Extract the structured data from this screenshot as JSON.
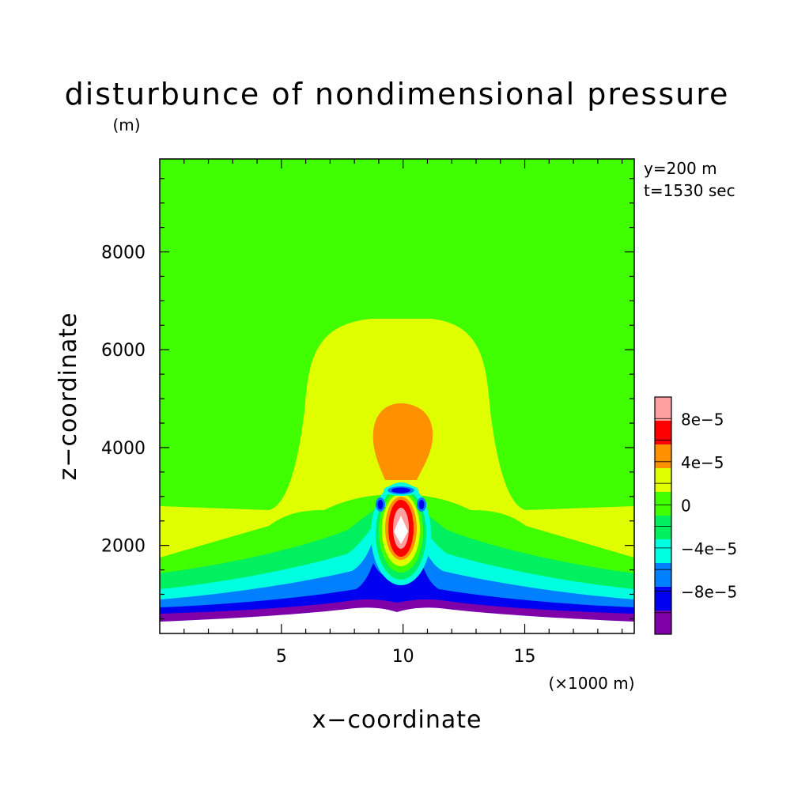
{
  "chart_data": {
    "type": "heatmap",
    "title": "disturbunce of nondimensional pressure",
    "ylabel_unit": "(m)",
    "xlabel": "x−coordinate",
    "ylabel": "z−coordinate",
    "xunit": "(×1000 m)",
    "info": [
      "y=200 m",
      "t=1530 sec"
    ],
    "xlim": [
      0,
      19.5
    ],
    "ylim": [
      200,
      9900
    ],
    "xticks": [
      5,
      10,
      15
    ],
    "xtick_labels": [
      "5",
      "10",
      "15"
    ],
    "yticks": [
      2000,
      4000,
      6000,
      8000
    ],
    "ytick_labels": [
      "2000",
      "4000",
      "6000",
      "8000"
    ],
    "colorbar": {
      "levels": [
        -0.00012,
        -0.0001,
        -8e-05,
        -6e-05,
        -4e-05,
        -2e-05,
        0,
        2e-05,
        4e-05,
        6e-05,
        8e-05,
        0.0001
      ],
      "colors": [
        "#8000a8",
        "#0000f0",
        "#0080ff",
        "#00ffe0",
        "#00f060",
        "#40ff00",
        "#e0ff00",
        "#ff9000",
        "#ff0000",
        "#ffa0a0"
      ],
      "labels": [
        "−8e−5",
        "−4e−5",
        "0",
        "4e−5",
        "8e−5"
      ],
      "label_values": [
        -8e-05,
        -4e-05,
        0,
        4e-05,
        8e-05
      ]
    }
  }
}
